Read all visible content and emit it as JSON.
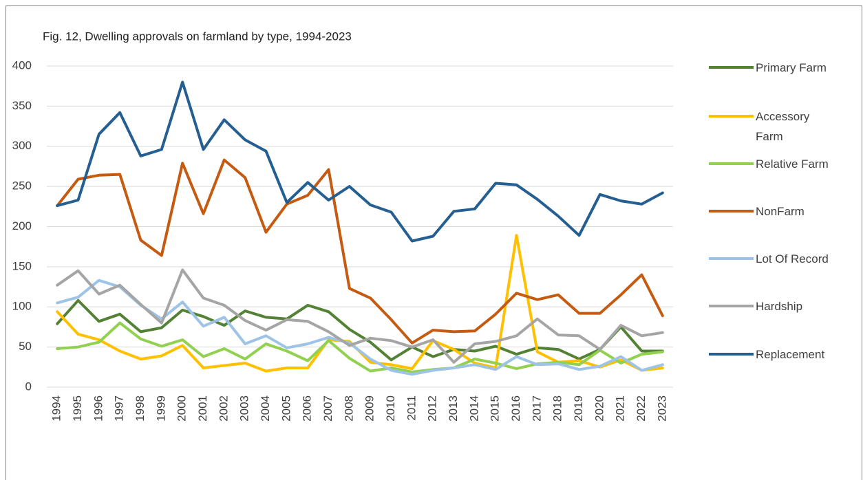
{
  "chart_data": {
    "type": "line",
    "title": "Fig. 12, Dwelling approvals on farmland by type, 1994-2023",
    "categories": [
      "1994",
      "1995",
      "1996",
      "1997",
      "1998",
      "1999",
      "2000",
      "2001",
      "2002",
      "2003",
      "2004",
      "2005",
      "2006",
      "2007",
      "2008",
      "2009",
      "2010",
      "2011",
      "2012",
      "2013",
      "2014",
      "2015",
      "2016",
      "2017",
      "2018",
      "2019",
      "2020",
      "2021",
      "2022",
      "2023"
    ],
    "series": [
      {
        "name": "Primary Farm",
        "color": "#548235",
        "values": [
          79,
          108,
          82,
          91,
          69,
          74,
          96,
          88,
          77,
          95,
          87,
          85,
          102,
          94,
          72,
          56,
          34,
          50,
          38,
          47,
          45,
          51,
          41,
          49,
          47,
          35,
          47,
          75,
          45,
          45
        ]
      },
      {
        "name": "Accessory Farm",
        "color": "#ffc000",
        "values": [
          94,
          66,
          59,
          45,
          35,
          39,
          52,
          24,
          27,
          30,
          20,
          24,
          24,
          59,
          57,
          31,
          28,
          23,
          58,
          47,
          30,
          24,
          189,
          44,
          31,
          33,
          25,
          34,
          21,
          24
        ]
      },
      {
        "name": "Relative Farm",
        "color": "#92d050",
        "values": [
          48,
          50,
          56,
          80,
          60,
          51,
          59,
          38,
          48,
          35,
          54,
          45,
          33,
          58,
          36,
          20,
          24,
          19,
          22,
          24,
          35,
          30,
          23,
          29,
          31,
          28,
          46,
          30,
          41,
          44
        ]
      },
      {
        "name": "NonFarm",
        "color": "#c55a11",
        "values": [
          226,
          259,
          264,
          265,
          183,
          164,
          279,
          216,
          283,
          261,
          193,
          228,
          239,
          271,
          123,
          111,
          84,
          55,
          71,
          69,
          70,
          91,
          117,
          109,
          115,
          92,
          92,
          115,
          140,
          89
        ]
      },
      {
        "name": " Lot Of Record",
        "color": "#9dc3e6",
        "values": [
          105,
          112,
          133,
          125,
          102,
          85,
          106,
          76,
          87,
          54,
          64,
          49,
          54,
          62,
          55,
          35,
          21,
          16,
          21,
          24,
          28,
          22,
          38,
          28,
          29,
          22,
          26,
          38,
          21,
          28
        ]
      },
      {
        "name": "Hardship",
        "color": "#a5a5a5",
        "values": [
          127,
          145,
          116,
          127,
          103,
          80,
          146,
          111,
          102,
          83,
          71,
          84,
          82,
          69,
          52,
          61,
          58,
          50,
          59,
          31,
          54,
          57,
          64,
          85,
          65,
          64,
          47,
          77,
          64,
          68
        ]
      },
      {
        "name": "Replacement",
        "color": "#255e91",
        "values": [
          226,
          233,
          315,
          342,
          288,
          296,
          380,
          296,
          333,
          308,
          294,
          230,
          255,
          233,
          250,
          227,
          218,
          182,
          188,
          219,
          222,
          254,
          252,
          234,
          213,
          189,
          240,
          232,
          228,
          242
        ]
      }
    ],
    "ylim": [
      0,
      400
    ],
    "yticks": [
      0,
      50,
      100,
      150,
      200,
      250,
      300,
      350,
      400
    ],
    "grid": true,
    "legend": "right"
  }
}
